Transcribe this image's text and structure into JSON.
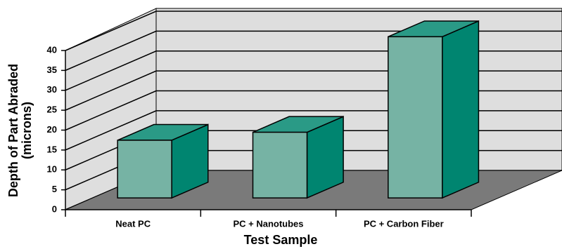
{
  "chart_data": {
    "type": "bar3d",
    "categories": [
      "Neat PC",
      "PC + Nanotubes",
      "PC + Carbon Fiber"
    ],
    "values": [
      14.5,
      16.5,
      40.5
    ],
    "ylim": [
      0,
      40
    ],
    "yticks": [
      0,
      5,
      10,
      15,
      20,
      25,
      30,
      35,
      40
    ],
    "xlabel": "Test Sample",
    "ylabel": [
      "Depth of Part Abraded",
      "(microns)"
    ],
    "grid": true,
    "colors": {
      "front": "#76b3a4",
      "side": "#008570",
      "top": "#2a9a86",
      "wall": "#dedede",
      "floor": "#7a7a7a"
    }
  }
}
